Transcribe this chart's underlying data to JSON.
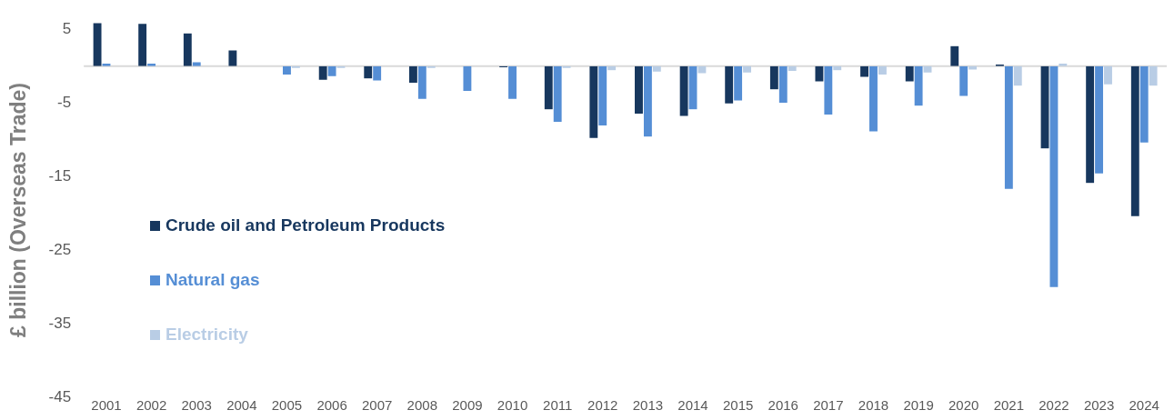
{
  "chart_data": {
    "type": "bar",
    "ylabel": "£ billion (Overseas Trade)",
    "categories": [
      "2001",
      "2002",
      "2003",
      "2004",
      "2005",
      "2006",
      "2007",
      "2008",
      "2009",
      "2010",
      "2011",
      "2012",
      "2013",
      "2014",
      "2015",
      "2016",
      "2017",
      "2018",
      "2019",
      "2020",
      "2021",
      "2022",
      "2023",
      "2024"
    ],
    "series": [
      {
        "name": "Crude oil and Petroleum Products",
        "color": "#17375e",
        "values": [
          5.9,
          5.8,
          4.5,
          2.2,
          0,
          -1.9,
          -1.7,
          -2.3,
          0,
          -0.2,
          -5.9,
          -9.8,
          -6.5,
          -6.8,
          -5.1,
          -3.2,
          -2.1,
          -1.5,
          -2.1,
          2.8,
          0.3,
          -11.2,
          -15.9,
          -20.4
        ]
      },
      {
        "name": "Natural gas",
        "color": "#558ed5",
        "values": [
          0.4,
          0.4,
          0.6,
          0,
          -1.2,
          -1.4,
          -2.0,
          -4.5,
          -3.4,
          -4.5,
          -7.6,
          -8.1,
          -9.6,
          -5.9,
          -4.7,
          -5.0,
          -6.6,
          -8.9,
          -5.4,
          -4.1,
          -16.7,
          -30.0,
          -14.6,
          -10.4
        ]
      },
      {
        "name": "Electricity",
        "color": "#b9cde5",
        "values": [
          0,
          0,
          0,
          0,
          -0.3,
          -0.3,
          0,
          -0.3,
          0,
          0,
          -0.3,
          -0.6,
          -0.8,
          -1.0,
          -0.9,
          -0.7,
          -0.6,
          -1.2,
          -0.9,
          -0.5,
          -2.7,
          0.4,
          -2.5,
          -2.7
        ]
      }
    ],
    "ylim": [
      -45,
      6
    ],
    "yticks": [
      5,
      -5,
      -15,
      -25,
      -35,
      -45
    ],
    "grid": false,
    "legend": "left"
  }
}
